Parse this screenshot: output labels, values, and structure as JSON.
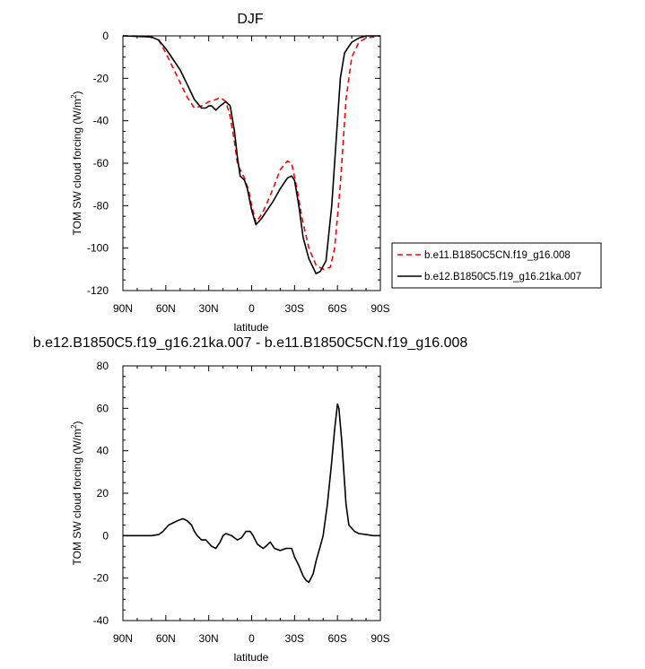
{
  "chart_data": [
    {
      "type": "line",
      "title": "DJF",
      "xlabel": "latitude",
      "ylabel": "TOM SW cloud forcing (W/m",
      "ylabel_sup": "2",
      "ylabel_close": ")",
      "xlim": [
        90,
        -90
      ],
      "ylim": [
        -120,
        0
      ],
      "x_ticks": [
        90,
        60,
        30,
        0,
        -30,
        -60,
        -90
      ],
      "x_tick_labels": [
        "90N",
        "60N",
        "30N",
        "0",
        "30S",
        "60S",
        "90S"
      ],
      "y_ticks": [
        0,
        -20,
        -40,
        -60,
        -80,
        -100,
        -120
      ],
      "y_tick_labels": [
        "0",
        "-20",
        "-40",
        "-60",
        "-80",
        "-100",
        "-120"
      ],
      "legend_position": "right-outside",
      "series": [
        {
          "name": "b.e11.B1850C5CN.f19_g16.008",
          "color": "#ff0000",
          "dash": "dashed",
          "x": [
            90,
            75,
            70,
            65,
            60,
            55,
            50,
            45,
            40,
            35,
            30,
            25,
            22,
            18,
            15,
            12,
            10,
            8,
            5,
            2,
            0,
            -3,
            -7,
            -10,
            -15,
            -20,
            -25,
            -28,
            -32,
            -35,
            -40,
            -45,
            -50,
            -55,
            -58,
            -62,
            -66,
            -70,
            -75,
            -80,
            -85,
            -90
          ],
          "y": [
            0,
            0,
            -0.5,
            -2,
            -8,
            -15,
            -22,
            -29,
            -34,
            -33,
            -31,
            -30,
            -29,
            -31,
            -38,
            -50,
            -60,
            -63,
            -67,
            -73,
            -80,
            -88,
            -84,
            -80,
            -72,
            -63,
            -59,
            -60,
            -73,
            -85,
            -100,
            -108,
            -110,
            -109,
            -100,
            -70,
            -30,
            -10,
            -3,
            -1,
            -0.5,
            0
          ]
        },
        {
          "name": "b.e12.B1850C5.f19_g16.21ka.007",
          "color": "#000000",
          "dash": "solid",
          "x": [
            90,
            70,
            65,
            60,
            55,
            50,
            45,
            40,
            35,
            32,
            30,
            28,
            25,
            22,
            18,
            15,
            12,
            10,
            8,
            5,
            3,
            0,
            -3,
            -7,
            -10,
            -15,
            -20,
            -25,
            -28,
            -30,
            -33,
            -36,
            -40,
            -45,
            -48,
            -52,
            -56,
            -60,
            -62,
            -65,
            -70,
            -75,
            -80,
            -85,
            -90
          ],
          "y": [
            0,
            -0.5,
            -2,
            -6,
            -11,
            -16,
            -23,
            -30,
            -34,
            -34,
            -33,
            -33,
            -35,
            -33,
            -31,
            -33,
            -45,
            -57,
            -66,
            -68,
            -72,
            -82,
            -89,
            -86,
            -83,
            -78,
            -72,
            -67,
            -66,
            -68,
            -80,
            -95,
            -105,
            -112,
            -111,
            -106,
            -80,
            -40,
            -20,
            -8,
            -3,
            -1,
            0,
            0,
            0
          ]
        }
      ]
    },
    {
      "type": "line",
      "title": "b.e12.B1850C5.f19_g16.21ka.007 - b.e11.B1850C5CN.f19_g16.008",
      "xlabel": "latitude",
      "ylabel": "TOM SW cloud forcing (W/m",
      "ylabel_sup": "2",
      "ylabel_close": ")",
      "xlim": [
        90,
        -90
      ],
      "ylim": [
        -40,
        80
      ],
      "x_ticks": [
        90,
        60,
        30,
        0,
        -30,
        -60,
        -90
      ],
      "x_tick_labels": [
        "90N",
        "60N",
        "30N",
        "0",
        "30S",
        "60S",
        "90S"
      ],
      "y_ticks": [
        80,
        60,
        40,
        20,
        0,
        -20,
        -40
      ],
      "y_tick_labels": [
        "80",
        "60",
        "40",
        "20",
        "0",
        "-20",
        "-40"
      ],
      "series": [
        {
          "color": "#000000",
          "dash": "solid",
          "x": [
            90,
            70,
            65,
            62,
            58,
            55,
            52,
            48,
            45,
            42,
            40,
            38,
            35,
            32,
            28,
            25,
            22,
            20,
            18,
            14,
            10,
            7,
            4,
            1,
            -1,
            -4,
            -8,
            -10,
            -13,
            -16,
            -20,
            -24,
            -28,
            -30,
            -33,
            -36,
            -38,
            -40,
            -43,
            -45,
            -48,
            -50,
            -53,
            -56,
            -58,
            -60,
            -61,
            -63,
            -66,
            -68,
            -72,
            -75,
            -80,
            -85,
            -90
          ],
          "y": [
            0,
            0,
            0.5,
            2,
            5,
            6,
            7,
            8,
            7,
            5,
            2,
            0,
            -2,
            -2,
            -5,
            -6,
            -3,
            0,
            1,
            0,
            -2,
            -1,
            2,
            2,
            0,
            -4,
            -6,
            -5,
            -3,
            -6,
            -7,
            -6,
            -6,
            -10,
            -14,
            -19,
            -21,
            -22,
            -18,
            -12,
            -5,
            0,
            15,
            35,
            50,
            62,
            60,
            45,
            15,
            5,
            2,
            1,
            0.5,
            0,
            0
          ]
        }
      ]
    }
  ]
}
